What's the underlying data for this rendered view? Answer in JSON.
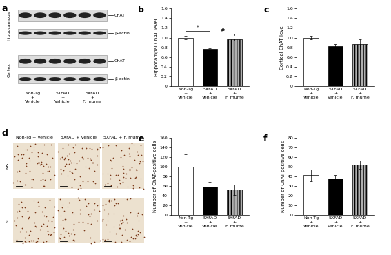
{
  "panel_a": {
    "letter": "a",
    "blots": [
      {
        "tissue": "Hippocampus",
        "bands": [
          "ChAT",
          "β-actin"
        ]
      },
      {
        "tissue": "Cortex",
        "bands": [
          "ChAT",
          "β-actin"
        ]
      }
    ],
    "lanes": [
      "Non-Tg\n+\nVehicle",
      "5XFAD\n+\nVehicle",
      "5XFAD\n+\nF. mume"
    ]
  },
  "panel_d": {
    "letter": "d",
    "columns": [
      "Non-Tg + Vehicle",
      "5XFAD + Vehicle",
      "5XFAD + F. mume"
    ],
    "rows": [
      "MS",
      "SI"
    ]
  },
  "chart_data": [
    {
      "type": "bar",
      "annotations": [
        "b"
      ],
      "ylabel": "Hippocampal ChAT level",
      "categories": [
        "Non-Tg\n+\nVehicle",
        "5XFAD\n+\nVehicle",
        "5XFAD\n+\nF. mume"
      ],
      "values": [
        1.0,
        0.76,
        0.96
      ],
      "errors": [
        0.04,
        0.02,
        0.02
      ],
      "colors": [
        "#ffffff",
        "#000000",
        "#b0b0b0"
      ],
      "ylim": [
        0,
        1.6
      ],
      "yticks": [
        {
          "value": 0,
          "label": "0"
        },
        {
          "value": 0.2,
          "label": "0.2"
        },
        {
          "value": 0.4,
          "label": "0.4"
        },
        {
          "value": 0.6,
          "label": "0.6"
        },
        {
          "value": 0.8,
          "label": "0.8"
        },
        {
          "value": 1.0,
          "label": "1.0"
        },
        {
          "value": 1.2,
          "label": "1.2"
        },
        {
          "value": 1.4,
          "label": "1.4"
        },
        {
          "value": 1.6,
          "label": "1.6"
        }
      ],
      "significance": [
        {
          "categories": [
            "Non-Tg\n+\nVehicle",
            "5XFAD\n+\nVehicle"
          ],
          "label": "*"
        },
        {
          "categories": [
            "5XFAD\n+\nVehicle",
            "5XFAD\n+\nF. mume"
          ],
          "label": "#"
        }
      ]
    },
    {
      "type": "bar",
      "annotations": [
        "c"
      ],
      "ylabel": "Cortical ChAT level",
      "categories": [
        "Non-Tg\n+\nVehicle",
        "5XFAD\n+\nVehicle",
        "5XFAD\n+\nF. mume"
      ],
      "values": [
        1.0,
        0.83,
        0.86
      ],
      "errors": [
        0.04,
        0.04,
        0.11
      ],
      "colors": [
        "#ffffff",
        "#000000",
        "#b0b0b0"
      ],
      "ylim": [
        0,
        1.6
      ],
      "yticks": [
        {
          "value": 0,
          "label": "0"
        },
        {
          "value": 0.2,
          "label": "0.2"
        },
        {
          "value": 0.4,
          "label": "0.4"
        },
        {
          "value": 0.6,
          "label": "0.6"
        },
        {
          "value": 0.8,
          "label": "0.8"
        },
        {
          "value": 1.0,
          "label": "1.0"
        },
        {
          "value": 1.2,
          "label": "1.2"
        },
        {
          "value": 1.4,
          "label": "1.4"
        },
        {
          "value": 1.6,
          "label": "1.6"
        }
      ]
    },
    {
      "type": "bar",
      "annotations": [
        "e"
      ],
      "ylabel": "Number of ChAT-positive cells",
      "categories": [
        "Non-Tg\n+\nVehicle",
        "5XFAD\n+\nVehicle",
        "5XFAD\n+\nF. mume"
      ],
      "values": [
        100,
        59,
        52
      ],
      "errors": [
        25,
        9,
        11
      ],
      "colors": [
        "#ffffff",
        "#000000",
        "#b0b0b0"
      ],
      "ylim": [
        0,
        160
      ],
      "yticks": [
        0,
        20,
        40,
        60,
        80,
        100,
        120,
        140,
        160
      ]
    },
    {
      "type": "bar",
      "annotations": [
        "f"
      ],
      "ylabel": "Number of ChAT-positive cells",
      "categories": [
        "Non-Tg\n+\nVehicle",
        "5XFAD\n+\nVehicle",
        "5XFAD\n+\nF. mume"
      ],
      "values": [
        41,
        38,
        52
      ],
      "errors": [
        6,
        3,
        4
      ],
      "colors": [
        "#ffffff",
        "#000000",
        "#b0b0b0"
      ],
      "ylim": [
        0,
        80
      ],
      "yticks": [
        0,
        10,
        20,
        30,
        40,
        50,
        60,
        70,
        80
      ]
    }
  ]
}
